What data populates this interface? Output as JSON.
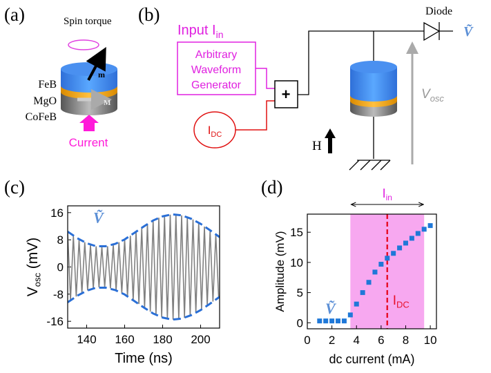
{
  "panel_a": {
    "label": "(a)",
    "spin_torque": "Spin torque",
    "m": "m",
    "layers": [
      "FeB",
      "MgO",
      "CoFeB"
    ],
    "M": "M",
    "current": "Current"
  },
  "panel_b": {
    "label": "(b)",
    "input": {
      "text": "Input I",
      "sub": "in"
    },
    "generator": [
      "Arbitrary",
      "Waveform",
      "Generator"
    ],
    "adder": "+",
    "idc": {
      "text": "I",
      "sub": "DC"
    },
    "field": "H",
    "diode": "Diode",
    "output": "Ṽ",
    "vosc": {
      "text": "V",
      "sub": "osc"
    }
  },
  "chart_data": [
    {
      "type": "line",
      "panel_label": "(c)",
      "xlabel": "Time (ns)",
      "ylabel": {
        "text": "V",
        "sub": "osc",
        "rest": " (mV)"
      },
      "xlim": [
        130,
        210
      ],
      "ylim": [
        -18,
        18
      ],
      "xticks": [
        140,
        160,
        180,
        200
      ],
      "yticks": [
        16,
        8,
        0,
        -8,
        -16
      ],
      "annotation": "Ṽ",
      "annotation_color": "#5b8fd6",
      "series": [
        {
          "color": "#808080",
          "dashed": false,
          "x": [
            130,
            131.5,
            133,
            134.5,
            136,
            137.5,
            139,
            140.5,
            142,
            143.5,
            145,
            146.5,
            148,
            149.5,
            151,
            152.5,
            154,
            155.5,
            157,
            158.5,
            160,
            161.5,
            163,
            164.5,
            166,
            167.5,
            169,
            170.5,
            172,
            173.5,
            175,
            176.5,
            178,
            179.5,
            181,
            182.5,
            184,
            185.5,
            187,
            188.5,
            190,
            191.5,
            193,
            194.5,
            196,
            197.5,
            199,
            200.5,
            202,
            203.5,
            205,
            206.5,
            208,
            209.5
          ],
          "values": [
            10.4,
            -9.8,
            9.2,
            -8.7,
            8.1,
            -7.7,
            7.3,
            -6.9,
            6.6,
            -6.3,
            6.1,
            -6.0,
            6.0,
            -6.0,
            6.1,
            -6.3,
            6.6,
            -6.9,
            7.3,
            -7.7,
            8.1,
            -8.7,
            9.2,
            -9.8,
            10.4,
            -10.9,
            11.5,
            -12.1,
            12.7,
            -13.2,
            13.7,
            -14.1,
            14.5,
            -14.8,
            15.1,
            -15.3,
            15.4,
            -15.5,
            15.5,
            -15.4,
            15.2,
            -15.0,
            14.7,
            -14.4,
            14.0,
            -13.5,
            13.0,
            -12.5,
            11.9,
            -11.3,
            10.8,
            -10.2,
            9.6,
            -9.0
          ]
        },
        {
          "color": "#2a6fd6",
          "dashed": true,
          "x": [
            130,
            135,
            140,
            145,
            150,
            155,
            160,
            165,
            170,
            175,
            180,
            185,
            190,
            195,
            200,
            205,
            210
          ],
          "values": [
            10.4,
            8.5,
            7.0,
            6.1,
            6.1,
            6.8,
            8.1,
            10.0,
            11.9,
            13.7,
            14.9,
            15.5,
            15.2,
            14.2,
            12.7,
            10.8,
            8.8
          ]
        },
        {
          "color": "#2a6fd6",
          "dashed": true,
          "x": [
            130,
            135,
            140,
            145,
            150,
            155,
            160,
            165,
            170,
            175,
            180,
            185,
            190,
            195,
            200,
            205,
            210
          ],
          "values": [
            -10.4,
            -8.5,
            -7.0,
            -6.1,
            -6.1,
            -6.8,
            -8.1,
            -10.0,
            -11.9,
            -13.7,
            -14.9,
            -15.5,
            -15.2,
            -14.2,
            -12.7,
            -10.8,
            -8.8
          ]
        }
      ]
    },
    {
      "type": "scatter",
      "panel_label": "(d)",
      "xlabel": "dc current (mA)",
      "ylabel": "Amplitude (mV)",
      "xlim": [
        0,
        10.5
      ],
      "ylim": [
        -1,
        18
      ],
      "xticks": [
        0,
        2,
        4,
        6,
        8,
        10
      ],
      "yticks": [
        0,
        5,
        10,
        15
      ],
      "x": [
        1,
        1.5,
        2,
        2.5,
        3,
        3.5,
        4,
        4.5,
        5,
        5.5,
        6,
        6.5,
        7,
        7.5,
        8,
        8.5,
        9,
        9.5,
        10
      ],
      "values": [
        0.3,
        0.3,
        0.3,
        0.3,
        0.3,
        1.3,
        3.1,
        5.0,
        6.7,
        8.4,
        9.7,
        10.7,
        11.5,
        12.4,
        13.2,
        14.0,
        14.8,
        15.5,
        16.1
      ],
      "color": "#1f78d8",
      "shade": {
        "range": [
          3.5,
          9.5
        ],
        "color": "#f7a8f0",
        "label": {
          "text": "I",
          "sub": "in"
        }
      },
      "vline": {
        "x": 6.5,
        "color": "#e8102a",
        "label": {
          "text": "I",
          "sub": "DC"
        }
      },
      "annotation": "Ṽ",
      "annotation_color": "#5b8fd6"
    }
  ]
}
